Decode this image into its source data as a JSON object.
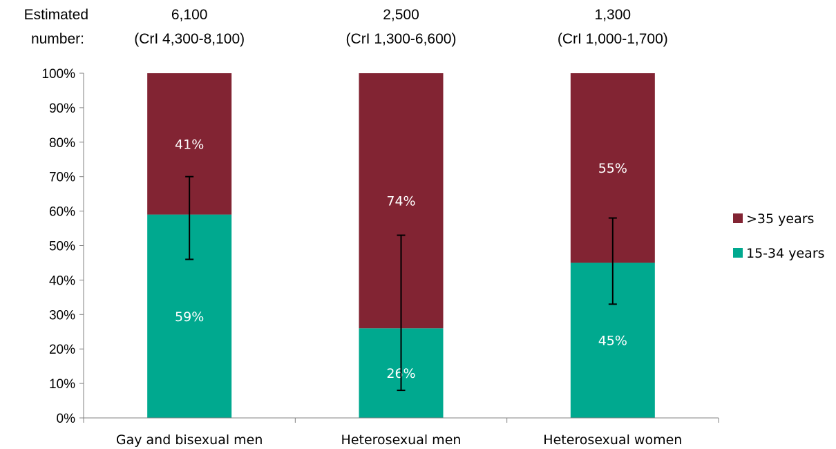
{
  "estimate_header": {
    "line1": "Estimated",
    "line2": "number:"
  },
  "colors": {
    "older": "#822433",
    "younger": "#00a98f",
    "axis": "#808080",
    "error_bar": "#000000"
  },
  "chart_data": {
    "type": "bar",
    "stacked": true,
    "title": "",
    "xlabel": "",
    "ylabel": "",
    "ylim": [
      0,
      100
    ],
    "y_ticks": [
      "0%",
      "10%",
      "20%",
      "30%",
      "40%",
      "50%",
      "60%",
      "70%",
      "80%",
      "90%",
      "100%"
    ],
    "categories": [
      "Gay and bisexual men",
      "Heterosexual men",
      "Heterosexual women"
    ],
    "estimates": [
      {
        "number": "6,100",
        "interval": "(CrI 4,300-8,100)"
      },
      {
        "number": "2,500",
        "interval": "(CrI 1,300-6,600)"
      },
      {
        "number": "1,300",
        "interval": "(CrI 1,000-1,700)"
      }
    ],
    "series": [
      {
        "name": "15-34 years",
        "values": [
          59,
          26,
          45
        ],
        "labels": [
          "59%",
          "26%",
          "45%"
        ],
        "color": "#00a98f",
        "label_color": "#ffffff"
      },
      {
        "name": ">35 years",
        "values": [
          41,
          74,
          55
        ],
        "labels": [
          "41%",
          "74%",
          "55%"
        ],
        "color": "#822433",
        "label_color": "#ffffff"
      }
    ],
    "error_bars": [
      {
        "low": 46,
        "high": 70
      },
      {
        "low": 8,
        "high": 53
      },
      {
        "low": 33,
        "high": 58
      }
    ],
    "legend": {
      "placement": "right",
      "entries": [
        ">35 years",
        "15-34 years"
      ]
    },
    "grid": false
  }
}
